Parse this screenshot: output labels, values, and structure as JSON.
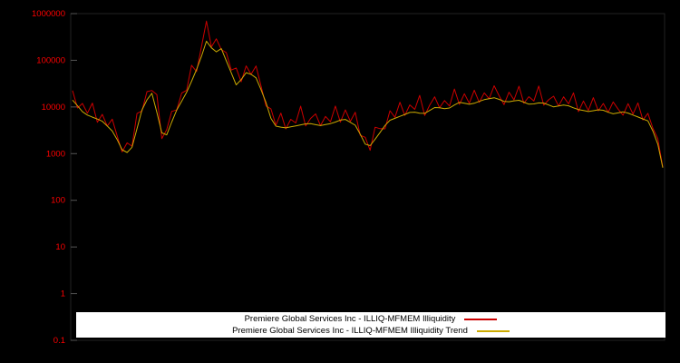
{
  "page": {
    "background_color": "#000000"
  },
  "chart_data": {
    "type": "line",
    "title": "",
    "xlabel": "",
    "ylabel": "",
    "yscale": "log",
    "ylim": [
      0.1,
      1000000
    ],
    "y_ticks": [
      "1000000",
      "100000",
      "10000",
      "1000",
      "100",
      "10",
      "1",
      "0.1"
    ],
    "tick_color": "#ff0000",
    "grid": false,
    "legend_position": "bottom-center",
    "legend_background": "#ffffff",
    "series": [
      {
        "name": "Premiere Global Services Inc - ILLIQ-MFMEM Illiquidity",
        "color": "#cc0000",
        "values": [
          22400,
          9500,
          11900,
          7370,
          12100,
          4680,
          6930,
          3900,
          5490,
          2400,
          1090,
          1700,
          1440,
          7220,
          8200,
          21300,
          22500,
          18400,
          2100,
          3290,
          8060,
          8600,
          19900,
          22600,
          78300,
          57200,
          195000,
          691000,
          194000,
          288000,
          169000,
          146000,
          61800,
          68300,
          34700,
          75900,
          50100,
          75600,
          28200,
          10500,
          9120,
          4070,
          7400,
          3390,
          5440,
          4530,
          10400,
          3910,
          5690,
          7090,
          3990,
          6270,
          4830,
          10450,
          4720,
          8660,
          4910,
          7700,
          2470,
          2240,
          1180,
          3670,
          3420,
          3400,
          8290,
          5990,
          12600,
          6570,
          11050,
          8890,
          17700,
          6550,
          10900,
          16500,
          9620,
          13700,
          10460,
          24200,
          11300,
          19200,
          12000,
          22800,
          12500,
          20100,
          15000,
          28400,
          17400,
          11200,
          20700,
          14200,
          27800,
          12000,
          16600,
          13400,
          28100,
          10900,
          14300,
          17000,
          10500,
          16500,
          11600,
          20100,
          7930,
          13400,
          8390,
          15800,
          8270,
          11900,
          7710,
          12800,
          8960,
          6660,
          11800,
          7050,
          12200,
          5250,
          7280,
          3480,
          2080,
          520
        ]
      },
      {
        "name": "Premiere Global Services Inc - ILLIQ-MFMEM Illiquidity Trend",
        "color": "#ccaa00",
        "values": [
          14000,
          10600,
          7900,
          6700,
          6050,
          5500,
          4950,
          3900,
          3050,
          2000,
          1210,
          1060,
          1370,
          3440,
          8630,
          14200,
          19600,
          7670,
          2780,
          2530,
          4740,
          8590,
          13270,
          20500,
          35600,
          63600,
          121600,
          256000,
          185000,
          151700,
          177800,
          97400,
          53700,
          29700,
          38600,
          54200,
          50100,
          42000,
          23500,
          12400,
          5700,
          3880,
          3700,
          3570,
          3750,
          3940,
          4140,
          4340,
          4380,
          4170,
          3990,
          4180,
          4390,
          4750,
          5240,
          5410,
          4680,
          4050,
          2600,
          1600,
          1480,
          2040,
          2850,
          4000,
          5180,
          5700,
          6280,
          6920,
          7620,
          7730,
          7360,
          7280,
          8410,
          9730,
          9620,
          9160,
          9510,
          10990,
          12560,
          11970,
          11400,
          11980,
          13200,
          14330,
          15030,
          15780,
          14510,
          13170,
          12920,
          13560,
          13920,
          12630,
          11470,
          11640,
          12220,
          12120,
          11000,
          10010,
          10500,
          11020,
          10560,
          9580,
          8810,
          8390,
          7990,
          8290,
          8700,
          8490,
          7710,
          7120,
          7470,
          7840,
          7400,
          6710,
          6100,
          5530,
          5020,
          3030,
          1600,
          500
        ]
      }
    ]
  },
  "legend": {
    "items": [
      {
        "label": "Premiere Global Services Inc - ILLIQ-MFMEM Illiquidity",
        "color": "#cc0000"
      },
      {
        "label": "Premiere Global Services Inc - ILLIQ-MFMEM Illiquidity Trend",
        "color": "#ccaa00"
      }
    ]
  }
}
